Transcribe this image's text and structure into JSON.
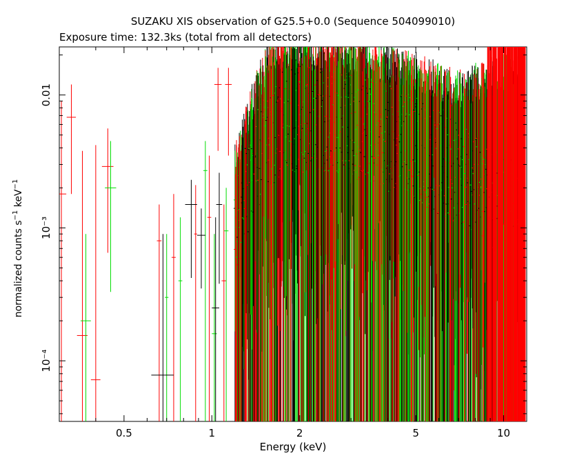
{
  "chart_data": {
    "type": "scatter",
    "title": "SUZAKU XIS observation of G25.5+0.0 (Sequence 504099010)",
    "subtitle": "Exposure time: 132.3ks (total from all detectors)",
    "xlabel": "Energy (keV)",
    "ylabel_main": "normalized counts s",
    "ylabel_sup1": "−1",
    "ylabel_mid": " keV",
    "ylabel_sup2": "−1",
    "x_scale": "log",
    "y_scale": "log",
    "xlim": [
      0.3,
      12
    ],
    "ylim": [
      3.5e-05,
      0.023
    ],
    "x_ticks": [
      {
        "value": 0.5,
        "label": "0.5"
      },
      {
        "value": 1,
        "label": "1"
      },
      {
        "value": 2,
        "label": "2"
      },
      {
        "value": 5,
        "label": "5"
      },
      {
        "value": 10,
        "label": "10"
      }
    ],
    "y_ticks": [
      {
        "value": 0.0001,
        "label": "10⁻⁴"
      },
      {
        "value": 0.001,
        "label": "10⁻³"
      },
      {
        "value": 0.01,
        "label": "0.01"
      }
    ],
    "grid": false,
    "legend": "none",
    "series": [
      {
        "color": "#ff0000",
        "points": [
          {
            "x": 0.305,
            "xerr": 0.012,
            "y": 0.0018,
            "ylo": 3.5e-05,
            "yhi": 0.009
          },
          {
            "x": 0.33,
            "xerr": 0.012,
            "y": 0.0068,
            "ylo": 0.0018,
            "yhi": 0.012
          },
          {
            "x": 0.36,
            "xerr": 0.015,
            "y": 0.000155,
            "ylo": 3.5e-05,
            "yhi": 0.0038
          },
          {
            "x": 0.4,
            "xerr": 0.015,
            "y": 7.2e-05,
            "ylo": 3.5e-05,
            "yhi": 0.0042
          },
          {
            "x": 0.44,
            "xerr": 0.02,
            "y": 0.0029,
            "ylo": 0.00065,
            "yhi": 0.0056
          },
          {
            "x": 0.66,
            "xerr": 0.012,
            "y": 0.0008,
            "ylo": 3.5e-05,
            "yhi": 0.0015
          },
          {
            "x": 0.74,
            "xerr": 0.012,
            "y": 0.0006,
            "ylo": 3.5e-05,
            "yhi": 0.0018
          },
          {
            "x": 0.88,
            "xerr": 0.01,
            "y": 0.0009,
            "ylo": 3.5e-05,
            "yhi": 0.0021
          },
          {
            "x": 0.98,
            "xerr": 0.015,
            "y": 0.0012,
            "ylo": 3.5e-05,
            "yhi": 0.0035
          },
          {
            "x": 1.05,
            "xerr": 0.03,
            "y": 0.012,
            "ylo": 0.0038,
            "yhi": 0.016
          },
          {
            "x": 1.1,
            "xerr": 0.02,
            "y": 0.0004,
            "ylo": 3.5e-05,
            "yhi": 0.0015
          },
          {
            "x": 1.14,
            "xerr": 0.03,
            "y": 0.012,
            "ylo": 0.0035,
            "yhi": 0.016
          }
        ]
      },
      {
        "color": "#00dd00",
        "points": [
          {
            "x": 0.37,
            "xerr": 0.015,
            "y": 0.0002,
            "ylo": 3.5e-05,
            "yhi": 0.0009
          },
          {
            "x": 0.45,
            "xerr": 0.02,
            "y": 0.002,
            "ylo": 0.00033,
            "yhi": 0.0045
          },
          {
            "x": 0.7,
            "xerr": 0.01,
            "y": 0.0003,
            "ylo": 3.5e-05,
            "yhi": 0.0009
          },
          {
            "x": 0.78,
            "xerr": 0.012,
            "y": 0.0004,
            "ylo": 3.5e-05,
            "yhi": 0.0012
          },
          {
            "x": 0.95,
            "xerr": 0.015,
            "y": 0.0027,
            "ylo": 3.5e-05,
            "yhi": 0.0045
          },
          {
            "x": 1.02,
            "xerr": 0.02,
            "y": 0.00016,
            "ylo": 3.5e-05,
            "yhi": 0.0009
          },
          {
            "x": 1.12,
            "xerr": 0.02,
            "y": 0.00095,
            "ylo": 3.5e-05,
            "yhi": 0.002
          }
        ]
      },
      {
        "color": "#000000",
        "points": [
          {
            "x": 0.68,
            "xerr": 0.06,
            "y": 7.8e-05,
            "ylo": 3.5e-05,
            "yhi": 0.0009
          },
          {
            "x": 0.85,
            "xerr": 0.04,
            "y": 0.0015,
            "ylo": 0.00042,
            "yhi": 0.0023
          },
          {
            "x": 0.92,
            "xerr": 0.03,
            "y": 0.00088,
            "ylo": 0.00035,
            "yhi": 0.0014
          },
          {
            "x": 1.03,
            "xerr": 0.03,
            "y": 0.00025,
            "ylo": 3.5e-05,
            "yhi": 0.0012
          },
          {
            "x": 1.06,
            "xerr": 0.025,
            "y": 0.0015,
            "ylo": 0.00038,
            "yhi": 0.0026
          }
        ]
      }
    ],
    "dense_region": {
      "note_xrange": [
        1.2,
        11.8
      ],
      "colors": [
        "#000000",
        "#ff0000",
        "#00dd00"
      ],
      "upper_envelope": [
        [
          1.2,
          0.003
        ],
        [
          1.4,
          0.01
        ],
        [
          1.6,
          0.022
        ],
        [
          2.0,
          0.022
        ],
        [
          3.0,
          0.02
        ],
        [
          5.0,
          0.015
        ],
        [
          7.0,
          0.011
        ],
        [
          10.0,
          0.015
        ],
        [
          12.0,
          0.02
        ]
      ],
      "center_envelope": [
        [
          1.2,
          0.001
        ],
        [
          1.5,
          0.004
        ],
        [
          1.8,
          0.006
        ],
        [
          2.5,
          0.006
        ],
        [
          3.5,
          0.005
        ],
        [
          5.0,
          0.0035
        ],
        [
          7.0,
          0.0025
        ],
        [
          9.0,
          0.0015
        ],
        [
          12.0,
          0.0012
        ]
      ]
    }
  }
}
